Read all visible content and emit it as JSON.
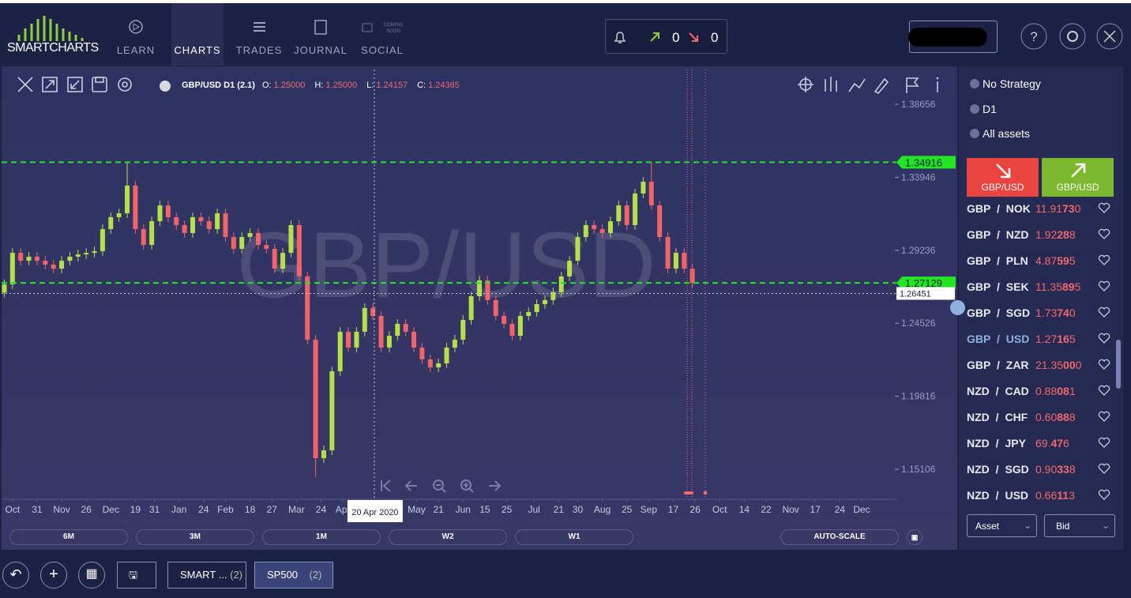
{
  "nav": {
    "logo": "SMARTCHARTS",
    "items": [
      "LEARN",
      "CHARTS",
      "TRADES",
      "JOURNAL",
      "SOCIAL"
    ],
    "social_badge": "COMING SOON",
    "alerts": {
      "up": "0",
      "down": "0"
    }
  },
  "toolbar": {
    "symbol": "GBP/USD D1 (2.1)",
    "ohlc": [
      {
        "label": "O:",
        "value": "1.25000"
      },
      {
        "label": "H:",
        "value": "1.25000"
      },
      {
        "label": "L:",
        "value": "1.24157"
      },
      {
        "label": "C:",
        "value": "1.24365"
      }
    ]
  },
  "chart_data": {
    "type": "candlestick",
    "title": "GBP/USD",
    "x": [
      1,
      4,
      7,
      10,
      13,
      16,
      19,
      22,
      25,
      28,
      31,
      34,
      37,
      40,
      43,
      46,
      49,
      52,
      55,
      58,
      61,
      64,
      67,
      70,
      73,
      76,
      79,
      82,
      85,
      88,
      91,
      94,
      97,
      100,
      103,
      106,
      109,
      112,
      115,
      118,
      121,
      124,
      127,
      130,
      133,
      136,
      139,
      142,
      145,
      148,
      151,
      154,
      157,
      160,
      163,
      166,
      169,
      172,
      175,
      178,
      181,
      184,
      187,
      190,
      193,
      196,
      199,
      202,
      205,
      208,
      211,
      214,
      217,
      220,
      223,
      226,
      229,
      232,
      235,
      238,
      241,
      244,
      247,
      250,
      253
    ],
    "open": [
      1.265,
      1.2704,
      1.2907,
      1.2856,
      1.2882,
      1.2856,
      1.2831,
      1.2805,
      1.2856,
      1.2882,
      1.2897,
      1.2907,
      1.2918,
      1.306,
      1.3137,
      1.3162,
      1.3341,
      1.306,
      1.2958,
      1.3111,
      1.3213,
      1.3137,
      1.3086,
      1.3035,
      1.3137,
      1.3111,
      1.306,
      1.3162,
      1.3009,
      1.2933,
      1.3009,
      1.3035,
      1.2958,
      1.2933,
      1.2805,
      1.2907,
      1.3086,
      1.2755,
      1.2347,
      1.1582,
      1.1633,
      1.2143,
      1.2398,
      1.2296,
      1.2398,
      1.2551,
      1.25,
      1.2296,
      1.2372,
      1.2449,
      1.2398,
      1.2296,
      1.2219,
      1.2168,
      1.2194,
      1.2296,
      1.2347,
      1.2474,
      1.2627,
      1.2729,
      1.2602,
      1.25,
      1.2449,
      1.2372,
      1.25,
      1.2525,
      1.2576,
      1.2602,
      1.2653,
      1.2755,
      1.2856,
      1.3009,
      1.3086,
      1.306,
      1.3035,
      1.3111,
      1.3213,
      1.3086,
      1.329,
      1.3366,
      1.3213,
      1.3009,
      1.2805,
      1.2907,
      1.2805
    ],
    "high": [
      1.2734,
      1.2937,
      1.2937,
      1.2912,
      1.2912,
      1.2886,
      1.2861,
      1.2886,
      1.2912,
      1.2927,
      1.2937,
      1.2948,
      1.309,
      1.3167,
      1.3192,
      1.3492,
      1.3371,
      1.309,
      1.3141,
      1.3243,
      1.3243,
      1.3167,
      1.3116,
      1.3167,
      1.3167,
      1.3141,
      1.3192,
      1.3192,
      1.3039,
      1.3039,
      1.3065,
      1.3065,
      1.2988,
      1.2963,
      1.2937,
      1.3116,
      1.3116,
      1.2785,
      1.2377,
      1.1663,
      1.2173,
      1.2428,
      1.2428,
      1.2428,
      1.2581,
      1.2581,
      1.253,
      1.2402,
      1.2479,
      1.2479,
      1.2428,
      1.2326,
      1.2249,
      1.2224,
      1.2326,
      1.2377,
      1.2504,
      1.2657,
      1.2759,
      1.2759,
      1.2632,
      1.253,
      1.2479,
      1.253,
      1.2555,
      1.2606,
      1.2632,
      1.2683,
      1.2785,
      1.2886,
      1.3039,
      1.3116,
      1.3116,
      1.309,
      1.3141,
      1.3243,
      1.3243,
      1.332,
      1.3396,
      1.3491,
      1.3243,
      1.3039,
      1.2937,
      1.2937,
      1.2835
    ],
    "low": [
      1.262,
      1.2674,
      1.2826,
      1.2826,
      1.2826,
      1.2801,
      1.2775,
      1.2775,
      1.2826,
      1.2852,
      1.2867,
      1.2877,
      1.2888,
      1.303,
      1.3107,
      1.3132,
      1.303,
      1.2928,
      1.2928,
      1.3081,
      1.3107,
      1.3056,
      1.3005,
      1.3005,
      1.3081,
      1.303,
      1.303,
      1.2979,
      1.2903,
      1.2903,
      1.2979,
      1.2928,
      1.2903,
      1.2775,
      1.2775,
      1.2877,
      1.2725,
      1.2317,
      1.146,
      1.1552,
      1.1603,
      1.2113,
      1.2266,
      1.2266,
      1.2368,
      1.247,
      1.2266,
      1.2266,
      1.2342,
      1.2368,
      1.2266,
      1.2189,
      1.2138,
      1.2138,
      1.2164,
      1.2266,
      1.2317,
      1.2444,
      1.2597,
      1.2572,
      1.247,
      1.2419,
      1.2342,
      1.2342,
      1.247,
      1.2495,
      1.2546,
      1.2572,
      1.2623,
      1.2725,
      1.2826,
      1.2979,
      1.303,
      1.3005,
      1.3005,
      1.3081,
      1.3056,
      1.3056,
      1.326,
      1.3183,
      1.2979,
      1.2775,
      1.2775,
      1.2775,
      1.2683
    ],
    "close": [
      1.2704,
      1.2907,
      1.2856,
      1.2882,
      1.2856,
      1.2831,
      1.2805,
      1.2856,
      1.2882,
      1.2897,
      1.2907,
      1.2918,
      1.306,
      1.3137,
      1.3162,
      1.3341,
      1.306,
      1.2958,
      1.3111,
      1.3213,
      1.3137,
      1.3086,
      1.3035,
      1.3137,
      1.3111,
      1.306,
      1.3162,
      1.3009,
      1.2933,
      1.3009,
      1.3035,
      1.2958,
      1.2933,
      1.2805,
      1.2907,
      1.3086,
      1.2755,
      1.2347,
      1.1582,
      1.1633,
      1.2143,
      1.2398,
      1.2296,
      1.2398,
      1.2551,
      1.25,
      1.2296,
      1.2372,
      1.2449,
      1.2398,
      1.2296,
      1.2219,
      1.2168,
      1.2194,
      1.2296,
      1.2347,
      1.2474,
      1.2627,
      1.2729,
      1.2602,
      1.25,
      1.2449,
      1.2372,
      1.25,
      1.2525,
      1.2576,
      1.2602,
      1.2653,
      1.2755,
      1.2856,
      1.3009,
      1.3086,
      1.306,
      1.3035,
      1.3111,
      1.3213,
      1.3086,
      1.329,
      1.3366,
      1.3213,
      1.3009,
      1.2805,
      1.2907,
      1.2805,
      1.2713
    ],
    "up_color": "#b5e04a",
    "down_color": "#f0646a",
    "xlim": [
      0,
      350
    ],
    "xticks": [
      {
        "value": 4,
        "label": "Oct"
      },
      {
        "value": 13,
        "label": "31"
      },
      {
        "value": 22,
        "label": "Nov"
      },
      {
        "value": 31,
        "label": "26"
      },
      {
        "value": 40,
        "label": "Dec"
      },
      {
        "value": 49,
        "label": "19"
      },
      {
        "value": 56,
        "label": "31"
      },
      {
        "value": 65,
        "label": "Jan"
      },
      {
        "value": 74,
        "label": "24"
      },
      {
        "value": 82,
        "label": "Feb"
      },
      {
        "value": 91,
        "label": "18"
      },
      {
        "value": 99,
        "label": "27"
      },
      {
        "value": 108,
        "label": "Mar"
      },
      {
        "value": 117,
        "label": "24"
      },
      {
        "value": 125,
        "label": "Apr"
      },
      {
        "value": 152,
        "label": "May"
      },
      {
        "value": 160,
        "label": "21"
      },
      {
        "value": 169,
        "label": "Jun"
      },
      {
        "value": 177,
        "label": "15"
      },
      {
        "value": 185,
        "label": "25"
      },
      {
        "value": 195,
        "label": "Jul"
      },
      {
        "value": 204,
        "label": "21"
      },
      {
        "value": 211,
        "label": "30"
      },
      {
        "value": 220,
        "label": "Aug"
      },
      {
        "value": 229,
        "label": "25"
      },
      {
        "value": 237,
        "label": "Sep"
      },
      {
        "value": 246,
        "label": "17"
      },
      {
        "value": 254,
        "label": "26"
      },
      {
        "value": 263,
        "label": "Oct"
      },
      {
        "value": 272,
        "label": "14"
      },
      {
        "value": 280,
        "label": "22"
      },
      {
        "value": 289,
        "label": "Nov"
      },
      {
        "value": 298,
        "label": "17"
      },
      {
        "value": 307,
        "label": "24"
      },
      {
        "value": 315,
        "label": "Dec"
      }
    ],
    "ylim": [
      1.1317,
      1.409
    ],
    "yticks": [
      1.15106,
      1.19816,
      1.24526,
      1.29236,
      1.33946,
      1.38656
    ],
    "hlines": [
      {
        "value": 1.34916,
        "color": "#22e622"
      },
      {
        "value": 1.27129,
        "color": "#22e622"
      }
    ],
    "crosshair": {
      "x": 136.5,
      "x_label": "20 Apr 2020",
      "y": 1.26451
    }
  },
  "chart_controls": {
    "timeframes": [
      "6M",
      "3M",
      "1M",
      "W2",
      "W1"
    ],
    "autoscale": "AUTO-SCALE"
  },
  "panel": {
    "filters": [
      "No Strategy",
      "D1",
      "All assets"
    ],
    "sell": "GBP/USD",
    "buy": "GBP/USD",
    "watchlist": [
      {
        "base": "GBP",
        "quote": "NOK",
        "price": "11.91730"
      },
      {
        "base": "GBP",
        "quote": "NZD",
        "price": "1.92288"
      },
      {
        "base": "GBP",
        "quote": "PLN",
        "price": "4.87595"
      },
      {
        "base": "GBP",
        "quote": "SEK",
        "price": "11.35895"
      },
      {
        "base": "GBP",
        "quote": "SGD",
        "price": "1.73740"
      },
      {
        "base": "GBP",
        "quote": "USD",
        "price": "1.27165"
      },
      {
        "base": "GBP",
        "quote": "ZAR",
        "price": "21.35000"
      },
      {
        "base": "NZD",
        "quote": "CAD",
        "price": "0.88081"
      },
      {
        "base": "NZD",
        "quote": "CHF",
        "price": "0.60888"
      },
      {
        "base": "NZD",
        "quote": "JPY",
        "price": "69.476"
      },
      {
        "base": "NZD",
        "quote": "SGD",
        "price": "0.90338"
      },
      {
        "base": "NZD",
        "quote": "USD",
        "price": "0.66113"
      }
    ],
    "selects": [
      "Asset",
      "Bid"
    ]
  },
  "tabs": [
    {
      "name": "SMART ...",
      "count": "(2)"
    },
    {
      "name": "SP500",
      "count": "(2)"
    }
  ]
}
